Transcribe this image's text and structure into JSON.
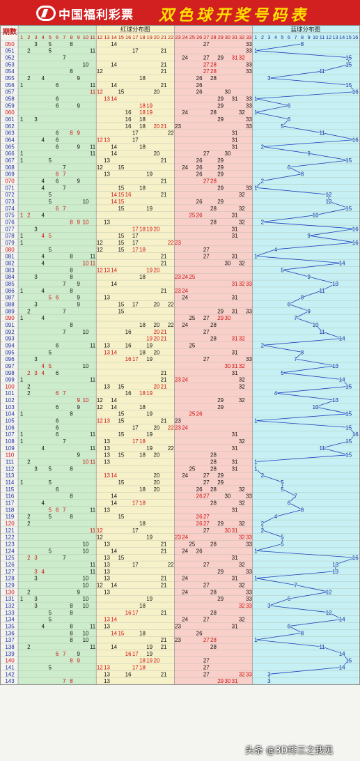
{
  "header": {
    "logo_text": "中国福利彩票",
    "title": "双色球开奖号码表"
  },
  "table": {
    "col_period_label": "期数",
    "red_section_label": "红球分布图",
    "blue_section_label": "蓝球分布图"
  },
  "colors": {
    "header_bg": "#d21f1f",
    "title": "#ffe000",
    "red_zone_1": "#cdeccc",
    "red_zone_2": "#f7f1c9",
    "red_zone_3": "#f9cfc9",
    "blue_zone": "#c6f0f3",
    "blue_line": "#1c3fbf",
    "hit_red_text": "#d01010",
    "hit_black_text": "#111111"
  },
  "chart_data": {
    "type": "table",
    "red_range": [
      1,
      33
    ],
    "blue_range": [
      1,
      16
    ],
    "draws": [
      {
        "period": "050",
        "red": [
          3,
          5,
          8,
          14,
          27,
          33
        ],
        "blue": 8
      },
      {
        "period": "051",
        "red": [
          2,
          5,
          11,
          17,
          21,
          33
        ],
        "blue": 1
      },
      {
        "period": "052",
        "red": [
          7,
          24,
          27,
          29,
          31,
          32
        ],
        "blue": 15
      },
      {
        "period": "053",
        "red": [
          10,
          14,
          21,
          27,
          28,
          33
        ],
        "blue": 15
      },
      {
        "period": "054",
        "red": [
          8,
          12,
          21,
          27,
          28,
          33
        ],
        "blue": 11
      },
      {
        "period": "055",
        "red": [
          2,
          4,
          9,
          18,
          26,
          28
        ],
        "blue": 3
      },
      {
        "period": "056",
        "red": [
          1,
          6,
          11,
          14,
          21,
          26
        ],
        "blue": 15
      },
      {
        "period": "057",
        "red": [
          11,
          12,
          15,
          20,
          26,
          30
        ],
        "blue": 16
      },
      {
        "period": "058",
        "red": [
          6,
          13,
          14,
          29,
          31,
          33
        ],
        "blue": 1
      },
      {
        "period": "059",
        "red": [
          6,
          9,
          18,
          19,
          29,
          33
        ],
        "blue": 6
      },
      {
        "period": "060",
        "red": [
          16,
          18,
          19,
          24,
          28,
          32
        ],
        "blue": 1
      },
      {
        "period": "061",
        "red": [
          1,
          3,
          16,
          18,
          29,
          33
        ],
        "blue": 6
      },
      {
        "period": "062",
        "red": [
          16,
          18,
          20,
          21,
          23,
          33
        ],
        "blue": 5
      },
      {
        "period": "063",
        "red": [
          6,
          8,
          9,
          17,
          22,
          31
        ],
        "blue": 11
      },
      {
        "period": "064",
        "red": [
          4,
          6,
          12,
          13,
          17,
          31
        ],
        "blue": 16
      },
      {
        "period": "065",
        "red": [
          6,
          9,
          11,
          14,
          18,
          31
        ],
        "blue": 2
      },
      {
        "period": "066",
        "red": [
          1,
          11,
          14,
          20,
          27,
          30
        ],
        "blue": 9
      },
      {
        "period": "067",
        "red": [
          1,
          5,
          13,
          21,
          26,
          29
        ],
        "blue": 15
      },
      {
        "period": "068",
        "red": [
          7,
          12,
          15,
          24,
          26,
          29
        ],
        "blue": 6
      },
      {
        "period": "069",
        "red": [
          6,
          7,
          13,
          19,
          26,
          29
        ],
        "blue": 8
      },
      {
        "period": "070",
        "red": [
          4,
          6,
          9,
          21,
          27,
          28
        ],
        "blue": 2
      },
      {
        "period": "071",
        "red": [
          4,
          7,
          15,
          18,
          29,
          33
        ],
        "blue": 1
      },
      {
        "period": "072",
        "red": [
          5,
          14,
          15,
          16,
          21,
          32
        ],
        "blue": 12
      },
      {
        "period": "073",
        "red": [
          5,
          10,
          14,
          15,
          26,
          29
        ],
        "blue": 12
      },
      {
        "period": "074",
        "red": [
          6,
          7,
          15,
          19,
          28,
          32
        ],
        "blue": 15
      },
      {
        "period": "075",
        "red": [
          1,
          2,
          4,
          25,
          26,
          31
        ],
        "blue": 10
      },
      {
        "period": "076",
        "red": [
          8,
          9,
          10,
          13,
          28,
          32
        ],
        "blue": 2
      },
      {
        "period": "077",
        "red": [
          3,
          17,
          18,
          19,
          20,
          31
        ],
        "blue": 16
      },
      {
        "period": "078",
        "red": [
          1,
          4,
          5,
          15,
          17,
          31
        ],
        "blue": 9
      },
      {
        "period": "079",
        "red": [
          1,
          12,
          15,
          17,
          22,
          23
        ],
        "blue": 16
      },
      {
        "period": "080",
        "red": [
          5,
          12,
          15,
          17,
          18,
          27
        ],
        "blue": 4
      },
      {
        "period": "081",
        "red": [
          4,
          8,
          11,
          21,
          27,
          31
        ],
        "blue": 1
      },
      {
        "period": "082",
        "red": [
          4,
          10,
          11,
          21,
          30,
          32
        ],
        "blue": 14
      },
      {
        "period": "083",
        "red": [
          8,
          12,
          13,
          14,
          19,
          20
        ],
        "blue": 5
      },
      {
        "period": "084",
        "red": [
          3,
          8,
          18,
          23,
          24,
          25
        ],
        "blue": 9
      },
      {
        "period": "085",
        "red": [
          7,
          9,
          14,
          31,
          32,
          33
        ],
        "blue": 13
      },
      {
        "period": "086",
        "red": [
          1,
          4,
          8,
          21,
          23,
          24
        ],
        "blue": 11
      },
      {
        "period": "087",
        "red": [
          5,
          6,
          9,
          13,
          24,
          31
        ],
        "blue": 8
      },
      {
        "period": "088",
        "red": [
          3,
          9,
          15,
          17,
          20,
          22
        ],
        "blue": 6
      },
      {
        "period": "089",
        "red": [
          2,
          7,
          15,
          29,
          31,
          33
        ],
        "blue": 9
      },
      {
        "period": "090",
        "red": [
          1,
          4,
          25,
          27,
          29,
          30
        ],
        "blue": 7
      },
      {
        "period": "091",
        "red": [
          8,
          18,
          20,
          22,
          24,
          28
        ],
        "blue": 10
      },
      {
        "period": "092",
        "red": [
          7,
          10,
          16,
          20,
          21,
          27
        ],
        "blue": 11
      },
      {
        "period": "093",
        "red": [
          19,
          20,
          21,
          28,
          31,
          32
        ],
        "blue": 14
      },
      {
        "period": "094",
        "red": [
          6,
          11,
          13,
          16,
          19,
          25
        ],
        "blue": 2
      },
      {
        "period": "095",
        "red": [
          5,
          13,
          14,
          18,
          20,
          31
        ],
        "blue": 8
      },
      {
        "period": "096",
        "red": [
          3,
          16,
          17,
          19,
          27,
          33
        ],
        "blue": 7
      },
      {
        "period": "097",
        "red": [
          4,
          5,
          10,
          30,
          31,
          32
        ],
        "blue": 13
      },
      {
        "period": "098",
        "red": [
          2,
          3,
          4,
          6,
          21,
          31
        ],
        "blue": 5
      },
      {
        "period": "099",
        "red": [
          1,
          11,
          21,
          23,
          24,
          32
        ],
        "blue": 14
      },
      {
        "period": "100",
        "red": [
          2,
          13,
          15,
          20,
          21,
          32
        ],
        "blue": 15
      },
      {
        "period": "101",
        "red": [
          2,
          6,
          7,
          16,
          18,
          19
        ],
        "blue": 4
      },
      {
        "period": "102",
        "red": [
          9,
          10,
          12,
          14,
          29,
          32
        ],
        "blue": 13
      },
      {
        "period": "103",
        "red": [
          6,
          9,
          12,
          14,
          18,
          29
        ],
        "blue": 10
      },
      {
        "period": "104",
        "red": [
          1,
          8,
          15,
          19,
          25,
          26
        ],
        "blue": 15
      },
      {
        "period": "105",
        "red": [
          6,
          12,
          13,
          15,
          21,
          23
        ],
        "blue": 1
      },
      {
        "period": "106",
        "red": [
          6,
          17,
          20,
          22,
          23,
          24
        ],
        "blue": 15
      },
      {
        "period": "107",
        "red": [
          1,
          6,
          11,
          15,
          19,
          31
        ],
        "blue": 16
      },
      {
        "period": "108",
        "red": [
          1,
          7,
          13,
          17,
          18,
          32
        ],
        "blue": 15
      },
      {
        "period": "109",
        "red": [
          4,
          11,
          13,
          19,
          22,
          31
        ],
        "blue": 11
      },
      {
        "period": "110",
        "red": [
          9,
          13,
          15,
          18,
          20,
          28
        ],
        "blue": 15
      },
      {
        "period": "111",
        "red": [
          2,
          10,
          11,
          13,
          28,
          31
        ],
        "blue": 1
      },
      {
        "period": "112",
        "red": [
          3,
          5,
          8,
          25,
          28,
          31
        ],
        "blue": 1
      },
      {
        "period": "113",
        "red": [
          13,
          14,
          20,
          24,
          27,
          29
        ],
        "blue": 2
      },
      {
        "period": "114",
        "red": [
          1,
          5,
          15,
          20,
          27,
          29
        ],
        "blue": 5
      },
      {
        "period": "115",
        "red": [
          6,
          18,
          20,
          26,
          28,
          32
        ],
        "blue": 5
      },
      {
        "period": "116",
        "red": [
          8,
          14,
          26,
          27,
          30,
          33
        ],
        "blue": 7
      },
      {
        "period": "117",
        "red": [
          4,
          14,
          17,
          18,
          28,
          32
        ],
        "blue": 6
      },
      {
        "period": "118",
        "red": [
          5,
          6,
          7,
          11,
          13,
          31
        ],
        "blue": 8
      },
      {
        "period": "119",
        "red": [
          2,
          5,
          8,
          15,
          26,
          27
        ],
        "blue": 4
      },
      {
        "period": "120",
        "red": [
          2,
          18,
          26,
          27,
          29,
          32
        ],
        "blue": 2
      },
      {
        "period": "121",
        "red": [
          11,
          12,
          17,
          27,
          30,
          31
        ],
        "blue": 2
      },
      {
        "period": "122",
        "red": [
          12,
          19,
          23,
          24,
          32,
          33
        ],
        "blue": 5
      },
      {
        "period": "123",
        "red": [
          10,
          13,
          21,
          25,
          28,
          33
        ],
        "blue": 5
      },
      {
        "period": "124",
        "red": [
          5,
          10,
          14,
          21,
          24,
          26
        ],
        "blue": 1
      },
      {
        "period": "125",
        "red": [
          2,
          3,
          7,
          13,
          15,
          31
        ],
        "blue": 16
      },
      {
        "period": "126",
        "red": [
          11,
          13,
          17,
          22,
          27,
          32
        ],
        "blue": 13
      },
      {
        "period": "127",
        "red": [
          3,
          4,
          11,
          13,
          29,
          33
        ],
        "blue": 13
      },
      {
        "period": "128",
        "red": [
          3,
          10,
          13,
          21,
          24,
          31
        ],
        "blue": 1
      },
      {
        "period": "129",
        "red": [
          10,
          12,
          14,
          21,
          27,
          32
        ],
        "blue": 7
      },
      {
        "period": "130",
        "red": [
          2,
          9,
          13,
          24,
          28,
          33
        ],
        "blue": 12
      },
      {
        "period": "131",
        "red": [
          1,
          3,
          10,
          19,
          29,
          33
        ],
        "blue": 6
      },
      {
        "period": "132",
        "red": [
          3,
          8,
          10,
          18,
          32,
          33
        ],
        "blue": 3
      },
      {
        "period": "133",
        "red": [
          5,
          8,
          16,
          17,
          21,
          28
        ],
        "blue": 12
      },
      {
        "period": "134",
        "red": [
          5,
          13,
          14,
          24,
          27,
          32
        ],
        "blue": 14
      },
      {
        "period": "135",
        "red": [
          4,
          8,
          11,
          13,
          23,
          31
        ],
        "blue": 6
      },
      {
        "period": "136",
        "red": [
          8,
          10,
          14,
          15,
          18,
          26
        ],
        "blue": 8
      },
      {
        "period": "137",
        "red": [
          8,
          10,
          21,
          23,
          27,
          28
        ],
        "blue": 1
      },
      {
        "period": "138",
        "red": [
          2,
          11,
          14,
          19,
          21,
          28
        ],
        "blue": 11
      },
      {
        "period": "139",
        "red": [
          6,
          7,
          9,
          16,
          17,
          19
        ],
        "blue": 14
      },
      {
        "period": "140",
        "red": [
          8,
          9,
          18,
          19,
          20,
          27
        ],
        "blue": 15
      },
      {
        "period": "141",
        "red": [
          5,
          12,
          13,
          17,
          18,
          27
        ],
        "blue": 14
      },
      {
        "period": "142",
        "red": [
          13,
          16,
          21,
          27,
          32,
          33
        ],
        "blue": 3
      },
      {
        "period": "143",
        "red": [
          7,
          8,
          13,
          29,
          30,
          31
        ],
        "blue": 3
      }
    ]
  },
  "watermark": "头条 @3D排三之我见"
}
